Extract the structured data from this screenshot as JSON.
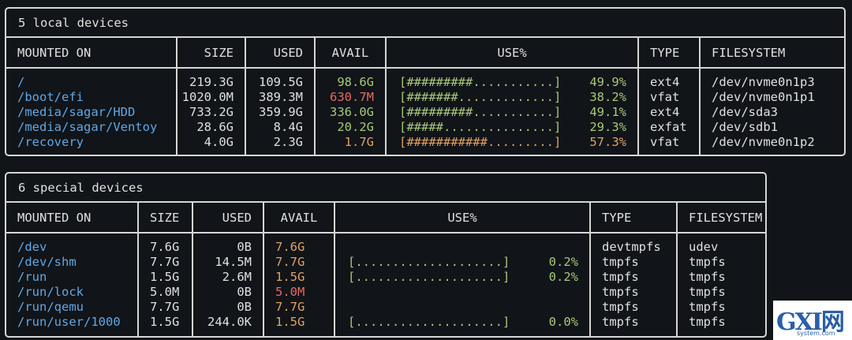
{
  "local": {
    "title": "5 local devices",
    "headers": [
      "MOUNTED ON",
      "SIZE",
      "USED",
      "AVAIL",
      "USE%",
      "TYPE",
      "FILESYSTEM"
    ],
    "rows": [
      {
        "mount": "/",
        "size": "219.3G",
        "used": "109.5G",
        "avail": "98.6G",
        "avail_color": "green",
        "bar": "[#########...........]",
        "pct": "49.9%",
        "bar_color": "green",
        "type": "ext4",
        "fs": "/dev/nvme0n1p3"
      },
      {
        "mount": "/boot/efi",
        "size": "1020.0M",
        "used": "389.3M",
        "avail": "630.7M",
        "avail_color": "red",
        "bar": "[#######.............]",
        "pct": "38.2%",
        "bar_color": "green",
        "type": "vfat",
        "fs": "/dev/nvme0n1p1"
      },
      {
        "mount": "/media/sagar/HDD",
        "size": "733.2G",
        "used": "359.9G",
        "avail": "336.0G",
        "avail_color": "green",
        "bar": "[#########...........]",
        "pct": "49.1%",
        "bar_color": "green",
        "type": "ext4",
        "fs": "/dev/sda3"
      },
      {
        "mount": "/media/sagar/Ventoy",
        "size": "28.6G",
        "used": "8.4G",
        "avail": "20.2G",
        "avail_color": "green",
        "bar": "[#####...............]",
        "pct": "29.3%",
        "bar_color": "green",
        "type": "exfat",
        "fs": "/dev/sdb1"
      },
      {
        "mount": "/recovery",
        "size": "4.0G",
        "used": "2.3G",
        "avail": "1.7G",
        "avail_color": "orange",
        "bar": "[###########.........]",
        "pct": "57.3%",
        "bar_color": "orange",
        "type": "vfat",
        "fs": "/dev/nvme0n1p2"
      }
    ]
  },
  "special": {
    "title": "6 special devices",
    "headers": [
      "MOUNTED ON",
      "SIZE",
      "USED",
      "AVAIL",
      "USE%",
      "TYPE",
      "FILESYSTEM"
    ],
    "rows": [
      {
        "mount": "/dev",
        "size": "7.6G",
        "used": "0B",
        "avail": "7.6G",
        "avail_color": "orange",
        "bar": "",
        "pct": "",
        "bar_color": "green",
        "type": "devtmpfs",
        "fs": "udev"
      },
      {
        "mount": "/dev/shm",
        "size": "7.7G",
        "used": "14.5M",
        "avail": "7.7G",
        "avail_color": "orange",
        "bar": "[....................]",
        "pct": "0.2%",
        "bar_color": "green",
        "type": "tmpfs",
        "fs": "tmpfs"
      },
      {
        "mount": "/run",
        "size": "1.5G",
        "used": "2.6M",
        "avail": "1.5G",
        "avail_color": "orange",
        "bar": "[....................]",
        "pct": "0.2%",
        "bar_color": "green",
        "type": "tmpfs",
        "fs": "tmpfs"
      },
      {
        "mount": "/run/lock",
        "size": "5.0M",
        "used": "0B",
        "avail": "5.0M",
        "avail_color": "red",
        "bar": "",
        "pct": "",
        "bar_color": "green",
        "type": "tmpfs",
        "fs": "tmpfs"
      },
      {
        "mount": "/run/qemu",
        "size": "7.7G",
        "used": "0B",
        "avail": "7.7G",
        "avail_color": "orange",
        "bar": "",
        "pct": "",
        "bar_color": "green",
        "type": "tmpfs",
        "fs": "tmpfs"
      },
      {
        "mount": "/run/user/1000",
        "size": "1.5G",
        "used": "244.0K",
        "avail": "1.5G",
        "avail_color": "orange",
        "bar": "[....................]",
        "pct": "0.0%",
        "bar_color": "green",
        "type": "tmpfs",
        "fs": "tmpfs"
      }
    ]
  },
  "watermark": {
    "main": "GXI网",
    "sub": "system.com"
  },
  "colors": {
    "green": "#a8c97a",
    "orange": "#e0a262",
    "red": "#e56a66",
    "path": "#5fa8e6"
  }
}
